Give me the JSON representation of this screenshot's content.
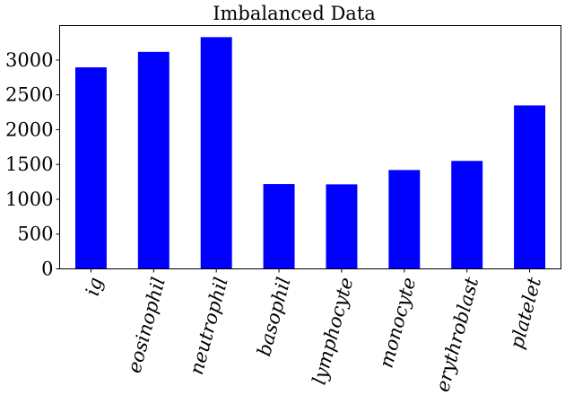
{
  "chart_data": {
    "type": "bar",
    "title": "Imbalanced Data",
    "xlabel": "",
    "ylabel": "",
    "categories": [
      "ig",
      "eosinophil",
      "neutrophil",
      "basophil",
      "lymphocyte",
      "monocyte",
      "erythroblast",
      "platelet"
    ],
    "values": [
      2895,
      3117,
      3329,
      1218,
      1214,
      1420,
      1551,
      2348
    ],
    "ylim": [
      0,
      3495
    ],
    "yticks": [
      0,
      500,
      1000,
      1500,
      2000,
      2500,
      3000
    ],
    "bar_color": "#0000ff",
    "grid": false,
    "x_tick_rotation": "75-degree italic labels"
  }
}
